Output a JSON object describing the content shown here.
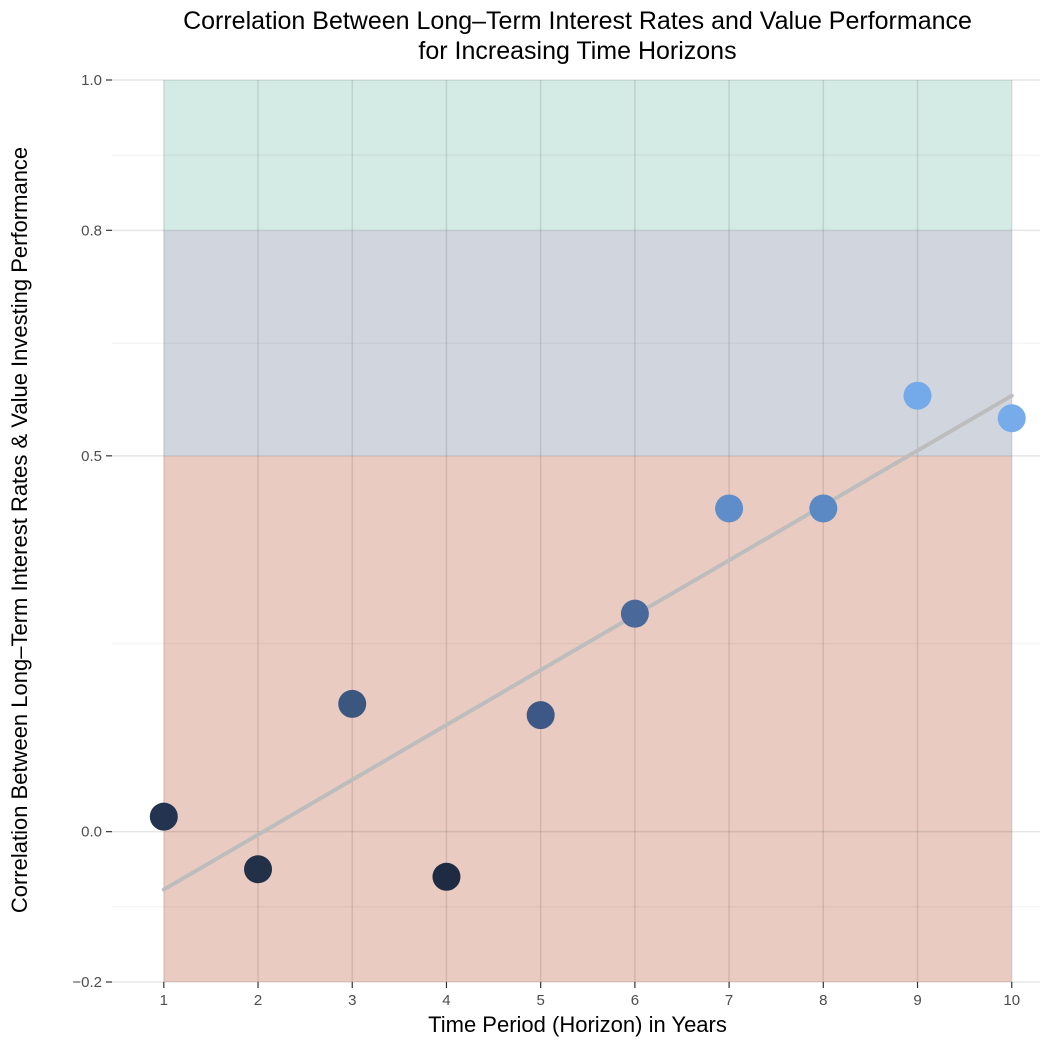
{
  "chart_data": {
    "type": "scatter",
    "title": "Correlation Between Long–Term Interest Rates and Value Performance",
    "subtitle": "for Increasing Time Horizons",
    "xlabel": "Time Period (Horizon) in Years",
    "ylabel": "Correlation Between Long–Term Interest Rates & Value Investing Performance",
    "x": [
      1,
      2,
      3,
      4,
      5,
      6,
      7,
      8,
      9,
      10
    ],
    "y": [
      0.02,
      -0.05,
      0.17,
      -0.06,
      0.155,
      0.29,
      0.43,
      0.43,
      0.58,
      0.55
    ],
    "point_colors": [
      "#243450",
      "#223048",
      "#3c577f",
      "#1f2b42",
      "#3d5886",
      "#4a6899",
      "#5f8dc9",
      "#5b89c3",
      "#74aaea",
      "#75ace9"
    ],
    "trend_line": {
      "x": [
        1,
        10
      ],
      "y": [
        -0.077,
        0.58
      ],
      "color": "#bdbdbd"
    },
    "bands": [
      {
        "y": [
          -0.2,
          0.5
        ],
        "color": "#e9cbc1"
      },
      {
        "y": [
          0.5,
          0.8
        ],
        "color": "#d1d5de"
      },
      {
        "y": [
          0.8,
          1.0
        ],
        "color": "#d4eae4"
      }
    ],
    "xlim": [
      0.45,
      10.3
    ],
    "ylim": [
      -0.2,
      1.0
    ],
    "xticks": [
      1,
      2,
      3,
      4,
      5,
      6,
      7,
      8,
      9,
      10
    ],
    "xtick_labels": [
      "1",
      "2",
      "3",
      "4",
      "5",
      "6",
      "7",
      "8",
      "9",
      "10"
    ],
    "yticks": [
      -0.2,
      0.0,
      0.5,
      0.8,
      1.0
    ],
    "ytick_labels": [
      "−0.2",
      "0.0",
      "0.5",
      "0.8",
      "1.0"
    ],
    "grid": true,
    "legend": "none"
  }
}
